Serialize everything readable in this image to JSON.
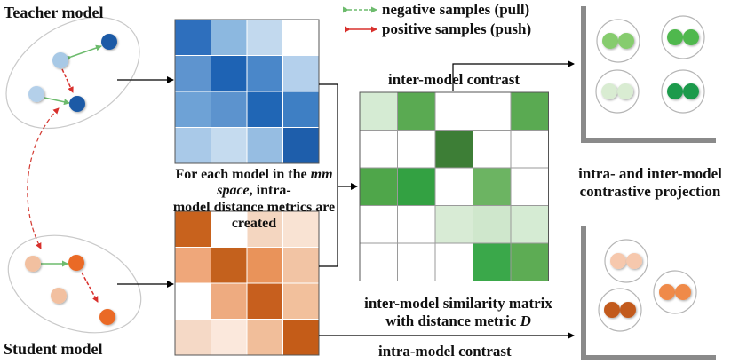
{
  "labels": {
    "teacher_model": "Teacher model",
    "student_model": "Student model",
    "legend_negative": "negative samples (pull)",
    "legend_positive": "positive samples (push)",
    "inter_model_contrast": "inter-model contrast",
    "intra_model_contrast": "intra-model contrast",
    "mm_note_prefix": "For each model in the ",
    "mm_note_italic": "mm space",
    "mm_note_suffix": ", intra-",
    "mm_note_line2": "model distance metrics are created",
    "similarity_line1": "inter-model similarity matrix",
    "similarity_line2_prefix": "with distance metric ",
    "similarity_line2_italic": "D",
    "projection_line1": "intra- and inter-model",
    "projection_line2": "contrastive projection"
  },
  "colors": {
    "negative_arrow": "#77c077",
    "positive_arrow": "#e0312f",
    "dashed_link": "#d33a32",
    "axis_gray": "#8a8a8a"
  },
  "matrices": {
    "teacher": {
      "grid": 4,
      "cells": [
        [
          "#2e6fbd",
          "#8cb8e0",
          "#c2d9ee",
          "#ffffff"
        ],
        [
          "#5e94cf",
          "#1e63b4",
          "#4a87c9",
          "#b4d0ec"
        ],
        [
          "#6ea2d6",
          "#5c93ce",
          "#2066b5",
          "#3e7fc4"
        ],
        [
          "#a9c9e8",
          "#c5dbef",
          "#96bde2",
          "#1e5eab"
        ]
      ]
    },
    "student": {
      "grid": 4,
      "cells": [
        [
          "#c8621d",
          "#ffffff",
          "#f4d6c0",
          "#f9e3d3"
        ],
        [
          "#efa77a",
          "#c4611d",
          "#e9935a",
          "#f2c4a4"
        ],
        [
          "#ffffff",
          "#eeab80",
          "#c75f1e",
          "#f2c09c"
        ],
        [
          "#f5d9c6",
          "#fbe8dc",
          "#f1be9a",
          "#c45c18"
        ]
      ]
    },
    "similarity": {
      "grid": 5,
      "cells": [
        [
          "#d5ebd3",
          "#5aaa52",
          "#ffffff",
          "#ffffff",
          "#5aaa52"
        ],
        [
          "#ffffff",
          "#ffffff",
          "#3d7e36",
          "#ffffff",
          "#ffffff"
        ],
        [
          "#4fa64a",
          "#33a142",
          "#ffffff",
          "#6cb462",
          "#ffffff"
        ],
        [
          "#ffffff",
          "#ffffff",
          "#d8ebd5",
          "#cfe7cc",
          "#d5ebd3"
        ],
        [
          "#ffffff",
          "#ffffff",
          "#ffffff",
          "#3aa84a",
          "#5dac54"
        ]
      ]
    }
  },
  "projection_circles": {
    "top": [
      [
        "#86cc6e",
        "#86cc6e"
      ],
      [
        "#4fb84d",
        "#4fb84d"
      ],
      [
        "#d9ecd2",
        "#d9ecd2"
      ],
      [
        "#1a9a4c",
        "#1a9a4c"
      ]
    ],
    "bottom": [
      [
        "#f6c8ad",
        "#f6c8ad"
      ],
      [
        "#c25a1e",
        "#c25a1e"
      ],
      [
        "#ef8a48",
        "#ef8a48"
      ]
    ]
  },
  "teacher_nodes": [
    "#1d5aa6",
    "#a8c9e6",
    "#b4d0ea",
    "#1d5aa6"
  ],
  "student_nodes": [
    "#f2c0a0",
    "#ea6a25",
    "#f2c0a0",
    "#ea6a25"
  ]
}
